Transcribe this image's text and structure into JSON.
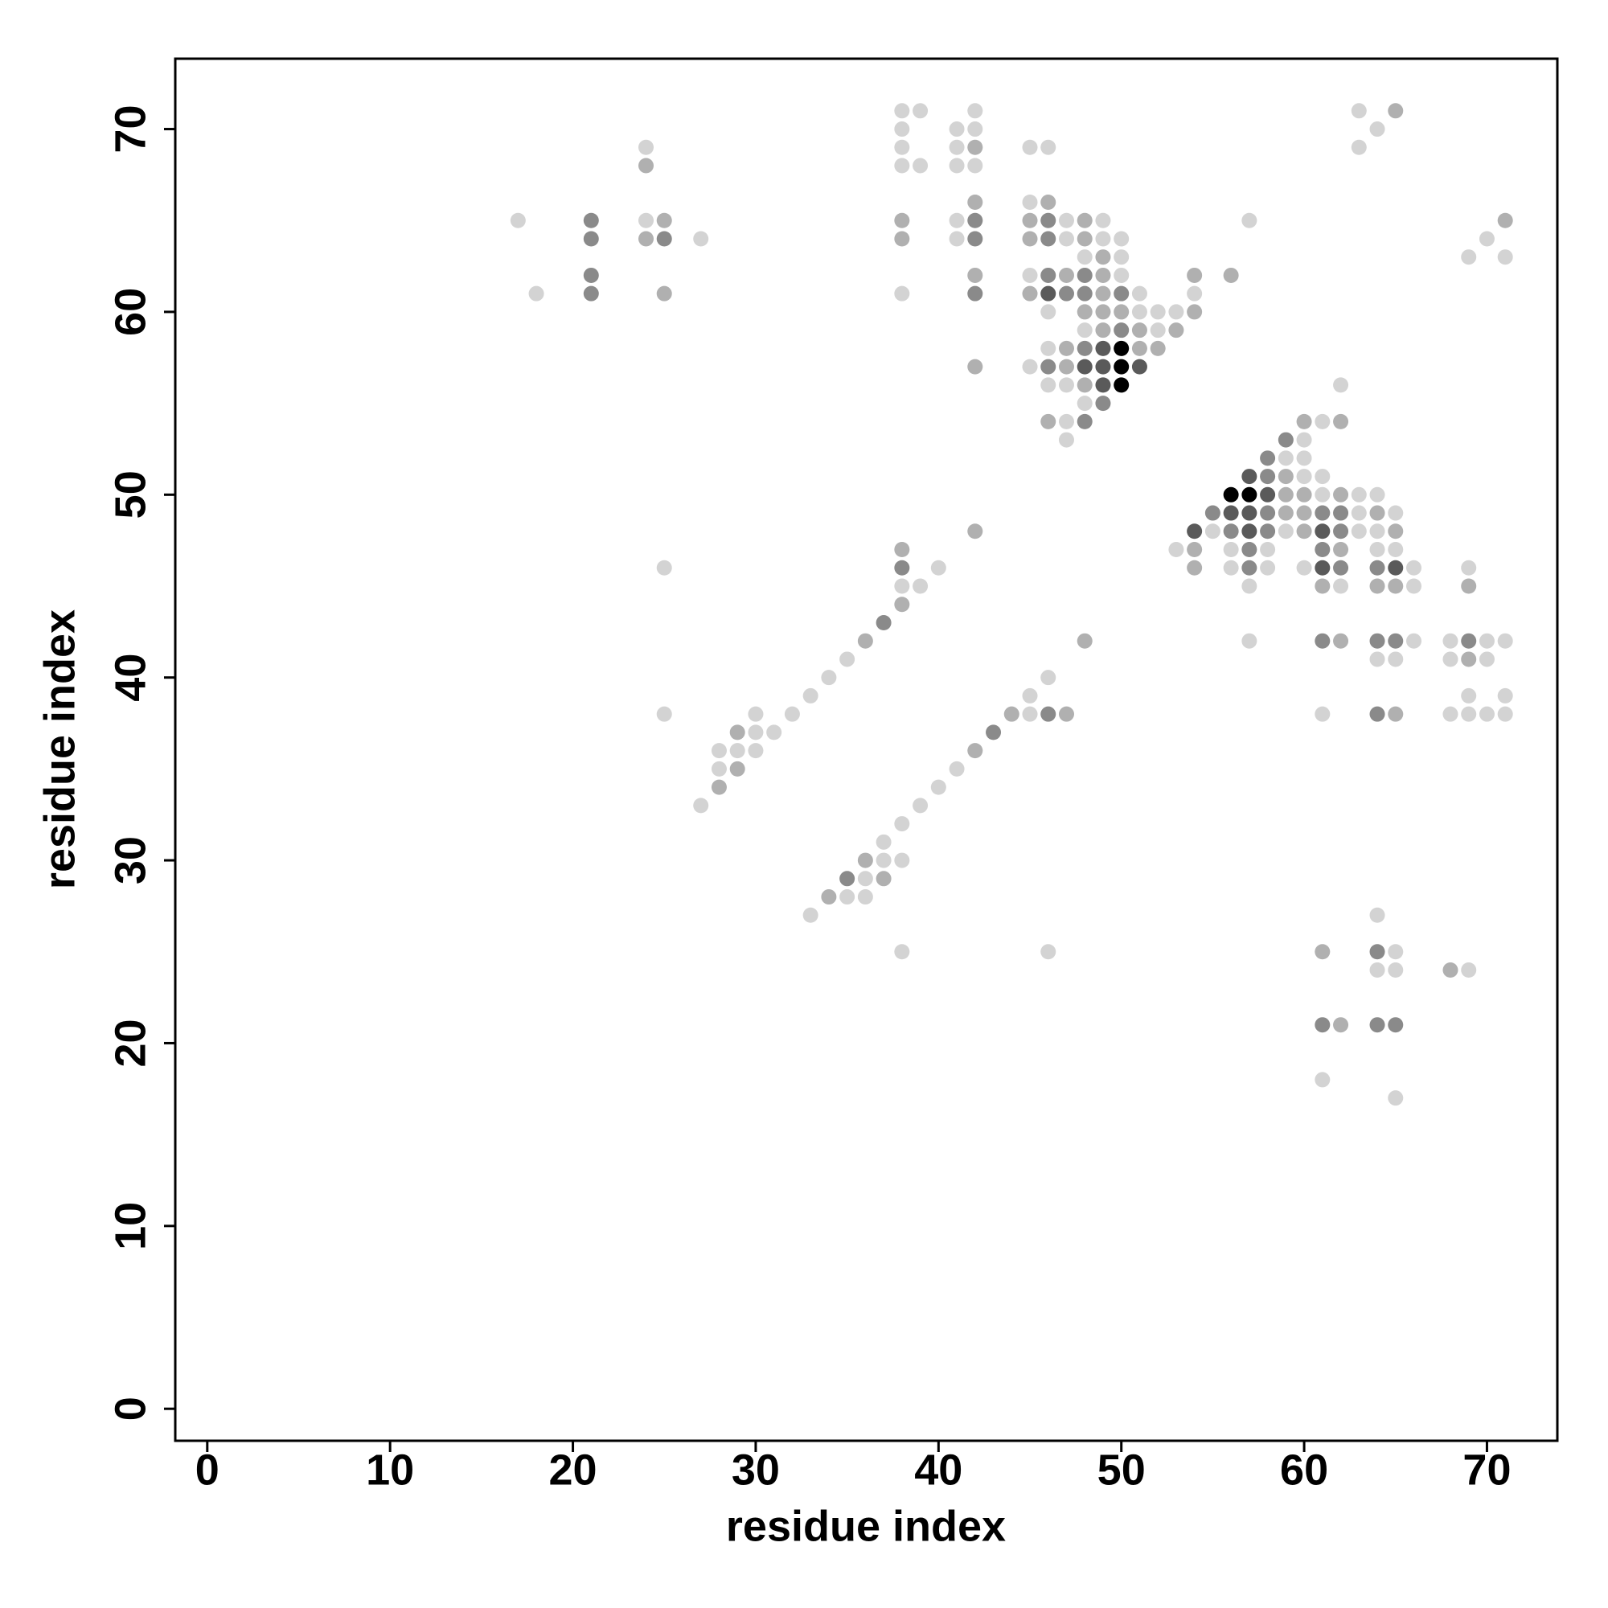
{
  "chart_data": {
    "type": "scatter",
    "xlabel": "residue index",
    "ylabel": "residue index",
    "xlim": [
      -1.75,
      73.85
    ],
    "ylim": [
      -1.75,
      73.85
    ],
    "xticks": [
      0,
      10,
      20,
      30,
      40,
      50,
      60,
      70
    ],
    "yticks": [
      0,
      10,
      20,
      30,
      40,
      50,
      60,
      70
    ],
    "x": [
      17,
      18,
      21,
      21,
      21,
      21,
      24,
      24,
      24,
      24,
      25,
      25,
      25,
      27,
      38,
      39,
      38,
      38,
      38,
      39,
      38,
      38,
      38,
      41,
      42,
      42,
      41,
      42,
      41,
      42,
      42,
      41,
      42,
      41,
      42,
      42,
      42,
      42,
      45,
      46,
      45,
      46,
      45,
      46,
      47,
      48,
      49,
      45,
      46,
      47,
      48,
      49,
      50,
      48,
      49,
      50,
      45,
      46,
      47,
      48,
      49,
      50,
      45,
      46,
      47,
      48,
      49,
      50,
      51,
      46,
      48,
      49,
      50,
      51,
      52,
      53,
      54,
      48,
      49,
      50,
      51,
      52,
      53,
      46,
      47,
      48,
      49,
      50,
      51,
      52,
      45,
      46,
      47,
      48,
      49,
      50,
      51,
      46,
      47,
      48,
      49,
      50,
      48,
      49,
      46,
      47,
      48,
      47,
      54,
      54,
      56,
      57,
      63,
      65,
      64,
      63,
      71,
      70,
      69,
      71,
      62,
      60,
      61,
      62,
      59,
      60,
      58,
      59,
      60,
      57,
      58,
      59,
      60,
      61,
      56,
      57,
      58,
      59,
      60,
      61,
      62,
      63,
      64,
      55,
      56,
      57,
      58,
      59,
      60,
      61,
      62,
      63,
      64,
      65,
      54,
      55,
      56,
      57,
      58,
      59,
      60,
      61,
      62,
      63,
      64,
      65,
      53,
      54,
      56,
      57,
      58,
      61,
      62,
      64,
      65,
      54,
      56,
      57,
      58,
      60,
      61,
      62,
      64,
      65,
      66,
      69,
      57,
      61,
      62,
      64,
      65,
      66,
      69,
      57,
      61,
      62,
      64,
      65,
      66,
      68,
      69,
      70,
      71,
      64,
      65,
      68,
      69,
      70,
      69,
      71,
      61,
      64,
      65,
      68,
      69,
      70,
      71,
      64,
      61,
      64,
      65,
      64,
      65,
      68,
      69,
      61,
      62,
      64,
      65,
      61,
      65,
      38,
      38,
      38,
      39,
      40,
      38,
      37,
      36,
      35,
      34,
      33,
      32,
      30,
      31,
      29,
      30,
      28,
      29,
      30,
      28,
      29,
      28,
      27,
      25,
      25,
      42,
      48,
      46,
      45,
      44,
      45,
      46,
      47,
      43,
      42,
      41,
      40,
      39,
      38,
      37,
      36,
      37,
      38,
      35,
      36,
      37,
      34,
      35,
      36,
      33,
      38,
      46
    ],
    "values": [
      65,
      61,
      65,
      64,
      62,
      61,
      69,
      68,
      65,
      64,
      65,
      64,
      61,
      64,
      71,
      71,
      70,
      69,
      68,
      68,
      65,
      64,
      61,
      70,
      71,
      70,
      69,
      69,
      68,
      68,
      66,
      65,
      65,
      64,
      64,
      62,
      61,
      57,
      69,
      69,
      66,
      66,
      65,
      65,
      65,
      65,
      65,
      64,
      64,
      64,
      64,
      64,
      64,
      63,
      63,
      63,
      62,
      62,
      62,
      62,
      62,
      62,
      61,
      61,
      61,
      61,
      61,
      61,
      61,
      60,
      60,
      60,
      60,
      60,
      60,
      60,
      60,
      59,
      59,
      59,
      59,
      59,
      59,
      58,
      58,
      58,
      58,
      58,
      58,
      58,
      57,
      57,
      57,
      57,
      57,
      57,
      57,
      56,
      56,
      56,
      56,
      56,
      55,
      55,
      54,
      54,
      54,
      53,
      62,
      61,
      62,
      65,
      71,
      71,
      70,
      69,
      65,
      64,
      63,
      63,
      56,
      54,
      54,
      54,
      53,
      53,
      52,
      52,
      52,
      51,
      51,
      51,
      51,
      51,
      50,
      50,
      50,
      50,
      50,
      50,
      50,
      50,
      50,
      49,
      49,
      49,
      49,
      49,
      49,
      49,
      49,
      49,
      49,
      49,
      48,
      48,
      48,
      48,
      48,
      48,
      48,
      48,
      48,
      48,
      48,
      48,
      47,
      47,
      47,
      47,
      47,
      47,
      47,
      47,
      47,
      46,
      46,
      46,
      46,
      46,
      46,
      46,
      46,
      46,
      46,
      46,
      45,
      45,
      45,
      45,
      45,
      45,
      45,
      42,
      42,
      42,
      42,
      42,
      42,
      42,
      42,
      42,
      42,
      41,
      41,
      41,
      41,
      41,
      39,
      39,
      38,
      38,
      38,
      38,
      38,
      38,
      38,
      27,
      25,
      25,
      25,
      24,
      24,
      24,
      24,
      21,
      21,
      21,
      21,
      18,
      17,
      47,
      46,
      45,
      45,
      46,
      44,
      43,
      42,
      41,
      40,
      39,
      38,
      38,
      37,
      37,
      37,
      36,
      36,
      36,
      35,
      35,
      34,
      33,
      46,
      38,
      48,
      42,
      40,
      39,
      38,
      38,
      38,
      38,
      37,
      36,
      35,
      34,
      33,
      32,
      31,
      30,
      30,
      30,
      29,
      29,
      29,
      28,
      28,
      28,
      27,
      25,
      25
    ],
    "colors": [
      "#d3d3d3",
      "#d3d3d3",
      "#8a8a8a",
      "#8a8a8a",
      "#8a8a8a",
      "#8a8a8a",
      "#d3d3d3",
      "#b0b0b0",
      "#d3d3d3",
      "#b0b0b0",
      "#b0b0b0",
      "#8a8a8a",
      "#b0b0b0",
      "#d3d3d3",
      "#d3d3d3",
      "#d3d3d3",
      "#d3d3d3",
      "#d3d3d3",
      "#d3d3d3",
      "#d3d3d3",
      "#b0b0b0",
      "#b0b0b0",
      "#d3d3d3",
      "#d3d3d3",
      "#d3d3d3",
      "#d3d3d3",
      "#d3d3d3",
      "#b0b0b0",
      "#d3d3d3",
      "#d3d3d3",
      "#b0b0b0",
      "#d3d3d3",
      "#8a8a8a",
      "#d3d3d3",
      "#8a8a8a",
      "#b0b0b0",
      "#8a8a8a",
      "#b0b0b0",
      "#d3d3d3",
      "#d3d3d3",
      "#d3d3d3",
      "#b0b0b0",
      "#b0b0b0",
      "#8a8a8a",
      "#d3d3d3",
      "#b0b0b0",
      "#d3d3d3",
      "#b0b0b0",
      "#8a8a8a",
      "#d3d3d3",
      "#b0b0b0",
      "#d3d3d3",
      "#d3d3d3",
      "#d3d3d3",
      "#b0b0b0",
      "#d3d3d3",
      "#d3d3d3",
      "#8a8a8a",
      "#b0b0b0",
      "#8a8a8a",
      "#b0b0b0",
      "#d3d3d3",
      "#b0b0b0",
      "#5a5a5a",
      "#8a8a8a",
      "#8a8a8a",
      "#b0b0b0",
      "#8a8a8a",
      "#d3d3d3",
      "#d3d3d3",
      "#b0b0b0",
      "#b0b0b0",
      "#b0b0b0",
      "#d3d3d3",
      "#d3d3d3",
      "#d3d3d3",
      "#b0b0b0",
      "#d3d3d3",
      "#b0b0b0",
      "#8a8a8a",
      "#b0b0b0",
      "#d3d3d3",
      "#b0b0b0",
      "#d3d3d3",
      "#b0b0b0",
      "#8a8a8a",
      "#5a5a5a",
      "#000000",
      "#b0b0b0",
      "#b0b0b0",
      "#d3d3d3",
      "#8a8a8a",
      "#b0b0b0",
      "#5a5a5a",
      "#5a5a5a",
      "#000000",
      "#5a5a5a",
      "#d3d3d3",
      "#d3d3d3",
      "#b0b0b0",
      "#5a5a5a",
      "#000000",
      "#d3d3d3",
      "#8a8a8a",
      "#b0b0b0",
      "#d3d3d3",
      "#8a8a8a",
      "#d3d3d3",
      "#b0b0b0",
      "#d3d3d3",
      "#b0b0b0",
      "#d3d3d3",
      "#d3d3d3",
      "#b0b0b0",
      "#d3d3d3",
      "#d3d3d3",
      "#b0b0b0",
      "#d3d3d3",
      "#d3d3d3",
      "#d3d3d3",
      "#d3d3d3",
      "#b0b0b0",
      "#d3d3d3",
      "#b0b0b0",
      "#8a8a8a",
      "#d3d3d3",
      "#8a8a8a",
      "#d3d3d3",
      "#d3d3d3",
      "#5a5a5a",
      "#8a8a8a",
      "#b0b0b0",
      "#d3d3d3",
      "#d3d3d3",
      "#000000",
      "#000000",
      "#5a5a5a",
      "#b0b0b0",
      "#b0b0b0",
      "#d3d3d3",
      "#b0b0b0",
      "#d3d3d3",
      "#d3d3d3",
      "#8a8a8a",
      "#5a5a5a",
      "#5a5a5a",
      "#8a8a8a",
      "#b0b0b0",
      "#b0b0b0",
      "#8a8a8a",
      "#8a8a8a",
      "#d3d3d3",
      "#b0b0b0",
      "#d3d3d3",
      "#5a5a5a",
      "#d3d3d3",
      "#8a8a8a",
      "#5a5a5a",
      "#8a8a8a",
      "#d3d3d3",
      "#b0b0b0",
      "#5a5a5a",
      "#8a8a8a",
      "#d3d3d3",
      "#d3d3d3",
      "#b0b0b0",
      "#d3d3d3",
      "#b0b0b0",
      "#d3d3d3",
      "#8a8a8a",
      "#d3d3d3",
      "#8a8a8a",
      "#b0b0b0",
      "#d3d3d3",
      "#d3d3d3",
      "#b0b0b0",
      "#d3d3d3",
      "#8a8a8a",
      "#d3d3d3",
      "#d3d3d3",
      "#5a5a5a",
      "#8a8a8a",
      "#8a8a8a",
      "#5a5a5a",
      "#d3d3d3",
      "#d3d3d3",
      "#d3d3d3",
      "#b0b0b0",
      "#d3d3d3",
      "#b0b0b0",
      "#b0b0b0",
      "#d3d3d3",
      "#b0b0b0",
      "#d3d3d3",
      "#8a8a8a",
      "#b0b0b0",
      "#8a8a8a",
      "#8a8a8a",
      "#d3d3d3",
      "#d3d3d3",
      "#8a8a8a",
      "#d3d3d3",
      "#d3d3d3",
      "#d3d3d3",
      "#d3d3d3",
      "#d3d3d3",
      "#b0b0b0",
      "#d3d3d3",
      "#d3d3d3",
      "#d3d3d3",
      "#d3d3d3",
      "#8a8a8a",
      "#b0b0b0",
      "#d3d3d3",
      "#d3d3d3",
      "#d3d3d3",
      "#d3d3d3",
      "#d3d3d3",
      "#b0b0b0",
      "#8a8a8a",
      "#d3d3d3",
      "#d3d3d3",
      "#d3d3d3",
      "#b0b0b0",
      "#d3d3d3",
      "#8a8a8a",
      "#b0b0b0",
      "#8a8a8a",
      "#8a8a8a",
      "#d3d3d3",
      "#d3d3d3",
      "#b0b0b0",
      "#8a8a8a",
      "#d3d3d3",
      "#d3d3d3",
      "#d3d3d3",
      "#b0b0b0",
      "#8a8a8a",
      "#b0b0b0",
      "#d3d3d3",
      "#d3d3d3",
      "#d3d3d3",
      "#d3d3d3",
      "#d3d3d3",
      "#d3d3d3",
      "#b0b0b0",
      "#d3d3d3",
      "#d3d3d3",
      "#d3d3d3",
      "#d3d3d3",
      "#d3d3d3",
      "#b0b0b0",
      "#b0b0b0",
      "#d3d3d3",
      "#d3d3d3",
      "#d3d3d3",
      "#b0b0b0",
      "#b0b0b0",
      "#d3d3d3",
      "#d3d3d3",
      "#b0b0b0",
      "#d3d3d3",
      "#8a8a8a",
      "#b0b0b0",
      "#8a8a8a",
      "#b0b0b0",
      "#d3d3d3",
      "#d3d3d3",
      "#d3d3d3",
      "#d3d3d3",
      "#d3d3d3",
      "#b0b0b0",
      "#d3d3d3",
      "#d3d3d3",
      "#8a8a8a",
      "#d3d3d3",
      "#b0b0b0",
      "#b0b0b0",
      "#d3d3d3",
      "#d3d3d3",
      "#d3d3d3",
      "#d3d3d3",
      "#d3d3d3"
    ]
  }
}
